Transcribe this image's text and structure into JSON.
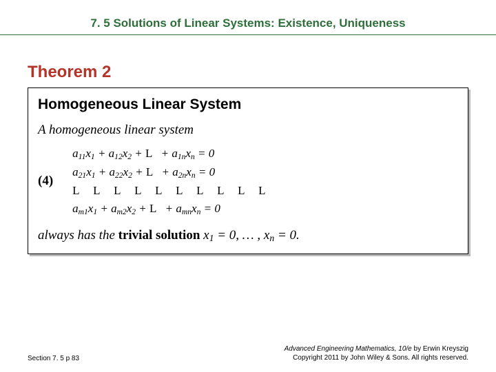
{
  "colors": {
    "header": "#2e6e3a",
    "header_underline": "#2e6e3a",
    "accent": "#b4342a",
    "box_border": "#000000",
    "box_bg": "#ffffff",
    "box_shadow": "#b9b9b9",
    "text": "#000000"
  },
  "typography": {
    "header_fontsize": 17,
    "theorem_title_fontsize": 24,
    "box_title_fontsize": 21,
    "body_fontsize": 19,
    "eq_fontsize": 17,
    "footer_fontsize": 10
  },
  "header": "7. 5 Solutions of Linear Systems: Existence, Uniqueness",
  "theorem_label": "Theorem 2",
  "box": {
    "title": "Homogeneous Linear System",
    "lead": "A homogeneous linear system",
    "eq_label": "(4)",
    "equations": {
      "rows": [
        {
          "a": "11",
          "b": "12",
          "n": "1n"
        },
        {
          "a": "21",
          "b": "22",
          "n": "2n"
        },
        {
          "dots": "L  L  L  L  L  L  L  L  L  L"
        },
        {
          "a": "m1",
          "b": "m2",
          "n": "mn"
        }
      ],
      "middle_symbol": "L",
      "rhs": "= 0"
    },
    "tail_prefix": "always has the ",
    "tail_bold": "trivial solution",
    "tail_mid1": " x",
    "tail_sub1": "1",
    "tail_mid2": " = 0, … , x",
    "tail_sub2": "n",
    "tail_end": " = 0."
  },
  "footer": {
    "left": "Section 7. 5   p 83",
    "right_title_ital": "Advanced Engineering Mathematics, 10/e",
    "right_title_rest": " by Erwin Kreyszig",
    "right_line2": "Copyright 2011 by John Wiley & Sons. All rights reserved."
  }
}
